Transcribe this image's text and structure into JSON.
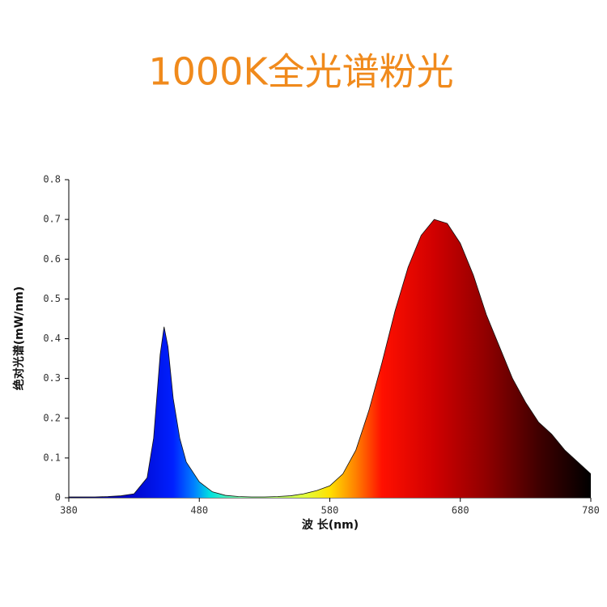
{
  "chart_data": {
    "type": "area",
    "title": "1000K全光谱粉光",
    "x_label": "波 长(nm)",
    "y_label": "绝对光谱(mW/nm)",
    "x": [
      380,
      390,
      400,
      410,
      420,
      430,
      440,
      445,
      450,
      453,
      456,
      460,
      465,
      470,
      480,
      490,
      500,
      510,
      520,
      530,
      540,
      550,
      560,
      570,
      580,
      590,
      600,
      610,
      620,
      630,
      640,
      650,
      660,
      670,
      680,
      690,
      700,
      710,
      720,
      730,
      740,
      750,
      760,
      770,
      780
    ],
    "values": [
      0.002,
      0.002,
      0.002,
      0.003,
      0.005,
      0.01,
      0.05,
      0.15,
      0.36,
      0.43,
      0.38,
      0.25,
      0.15,
      0.09,
      0.04,
      0.015,
      0.006,
      0.003,
      0.002,
      0.002,
      0.003,
      0.005,
      0.01,
      0.018,
      0.03,
      0.06,
      0.12,
      0.22,
      0.34,
      0.47,
      0.58,
      0.66,
      0.7,
      0.69,
      0.64,
      0.56,
      0.46,
      0.38,
      0.3,
      0.24,
      0.19,
      0.16,
      0.12,
      0.09,
      0.06
    ],
    "xlim": [
      380,
      780
    ],
    "xticks": [
      380,
      480,
      580,
      680,
      780
    ],
    "ylim": [
      0,
      0.8
    ],
    "yticks": [
      0,
      0.1,
      0.2,
      0.3,
      0.4,
      0.5,
      0.6,
      0.7,
      0.8
    ]
  }
}
